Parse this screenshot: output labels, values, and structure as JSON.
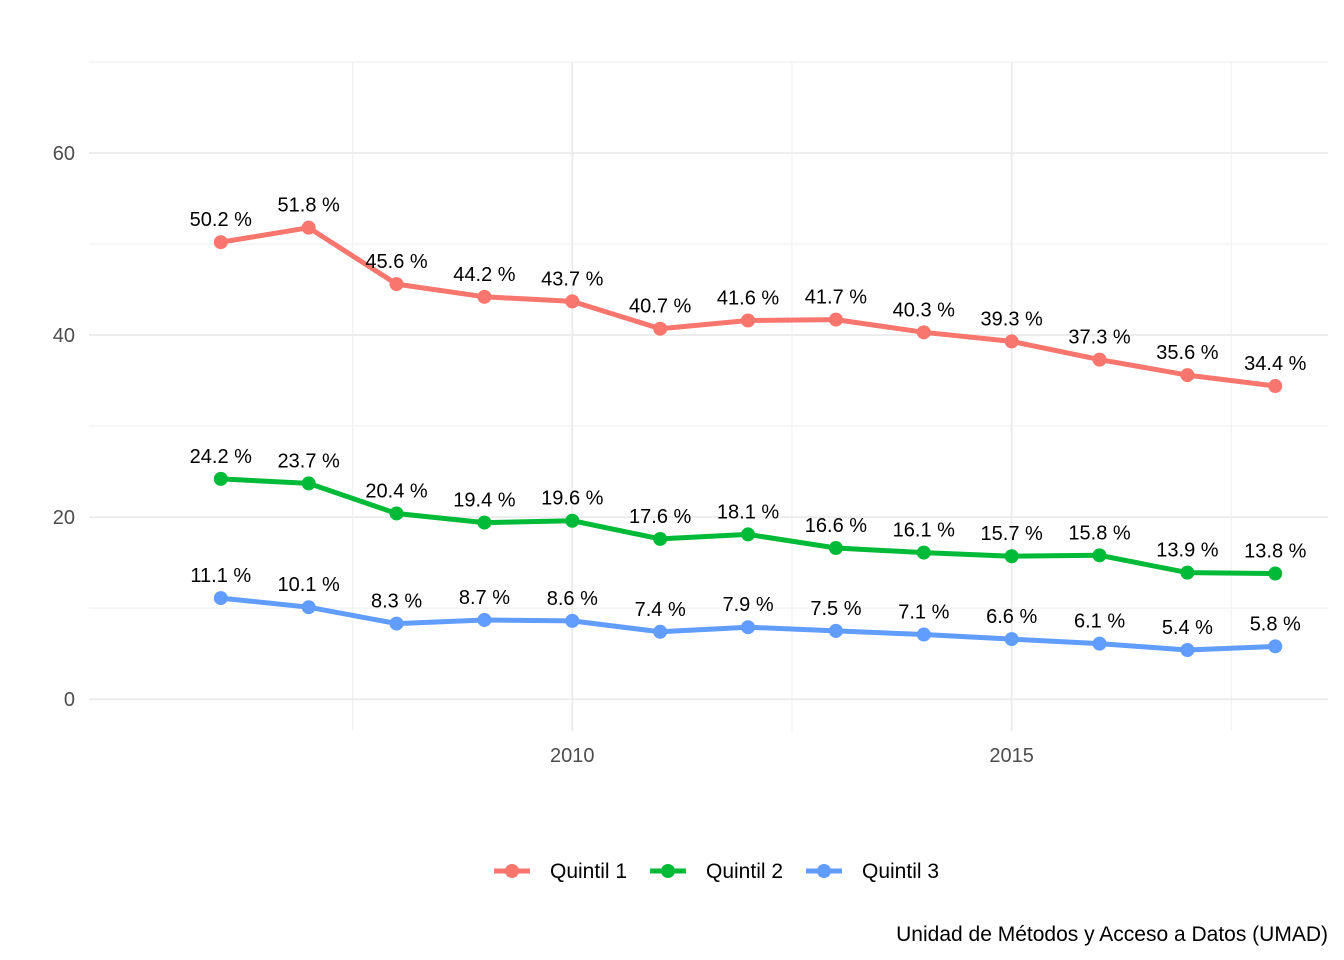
{
  "chart_data": {
    "type": "line",
    "x": [
      2006,
      2007,
      2008,
      2009,
      2010,
      2011,
      2012,
      2013,
      2014,
      2015,
      2016,
      2017,
      2018
    ],
    "xticks": [
      2010,
      2015
    ],
    "yticks": [
      0,
      20,
      40,
      60
    ],
    "xlim": [
      2004.5,
      2018.6
    ],
    "ylim": [
      -3.5,
      70
    ],
    "grid": true,
    "legend_position": "bottom",
    "series": [
      {
        "name": "Quintil 1",
        "color": "#F8766D",
        "values": [
          50.2,
          51.8,
          45.6,
          44.2,
          43.7,
          40.7,
          41.6,
          41.7,
          40.3,
          39.3,
          37.3,
          35.6,
          34.4
        ],
        "labels": [
          "50.2 %",
          "51.8 %",
          "45.6 %",
          "44.2 %",
          "43.7 %",
          "40.7 %",
          "41.6 %",
          "41.7 %",
          "40.3 %",
          "39.3 %",
          "37.3 %",
          "35.6 %",
          "34.4 %"
        ]
      },
      {
        "name": "Quintil 2",
        "color": "#00BA38",
        "values": [
          24.2,
          23.7,
          20.4,
          19.4,
          19.6,
          17.6,
          18.1,
          16.6,
          16.1,
          15.7,
          15.8,
          13.9,
          13.8
        ],
        "labels": [
          "24.2 %",
          "23.7 %",
          "20.4 %",
          "19.4 %",
          "19.6 %",
          "17.6 %",
          "18.1 %",
          "16.6 %",
          "16.1 %",
          "15.7 %",
          "15.8 %",
          "13.9 %",
          "13.8 %"
        ]
      },
      {
        "name": "Quintil 3",
        "color": "#619CFF",
        "values": [
          11.1,
          10.1,
          8.3,
          8.7,
          8.6,
          7.4,
          7.9,
          7.5,
          7.1,
          6.6,
          6.1,
          5.4,
          5.8
        ],
        "labels": [
          "11.1 %",
          "10.1 %",
          "8.3 %",
          "8.7 %",
          "8.6 %",
          "7.4 %",
          "7.9 %",
          "7.5 %",
          "7.1 %",
          "6.6 %",
          "6.1 %",
          "5.4 %",
          "5.8 %"
        ]
      }
    ],
    "caption": "Unidad de Métodos y Acceso a Datos (UMAD)"
  }
}
